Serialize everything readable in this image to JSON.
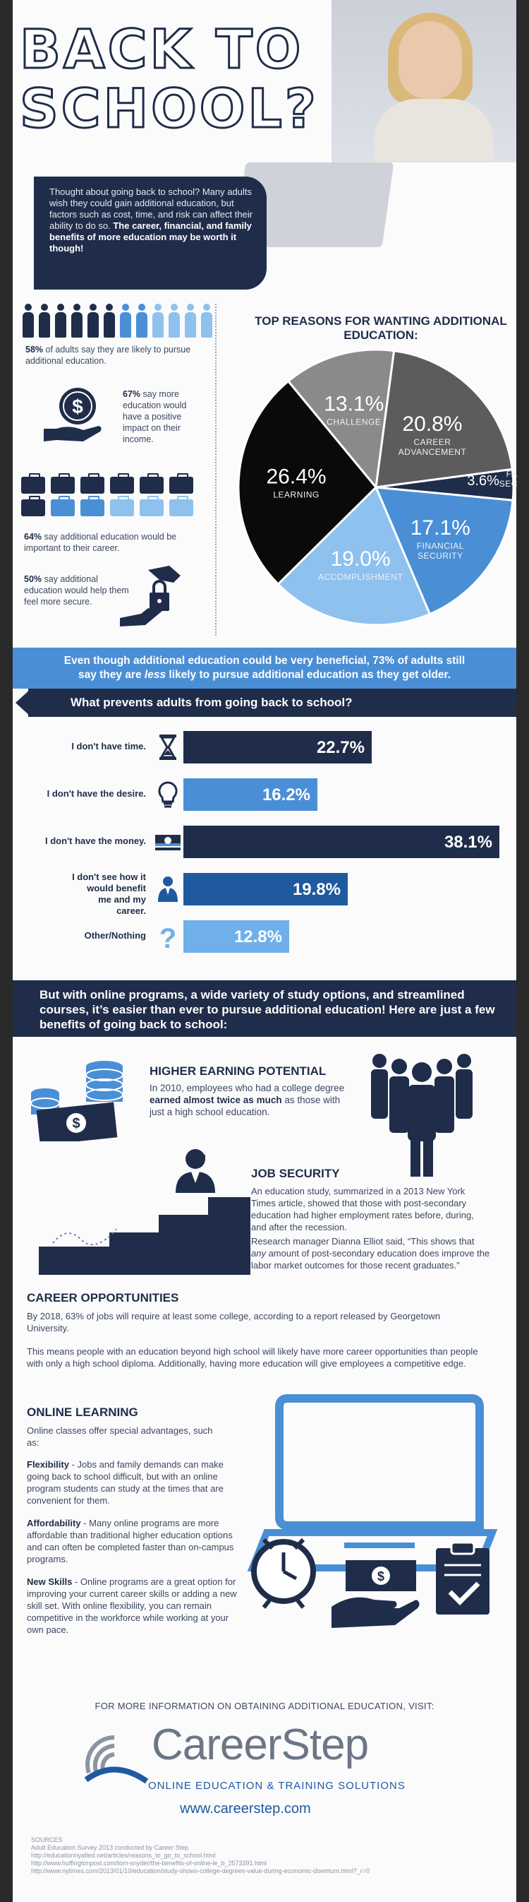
{
  "header": {
    "title_line1": "BACK TO",
    "title_line2": "SCHOOL?",
    "intro": "Thought about going back to school? Many adults wish they could gain additional education, but factors such as cost, time, and risk can affect their ability to do so.",
    "intro_bold": "The career, financial, and family benefits of more education may be worth it though!"
  },
  "stats": {
    "s1_pct": "58%",
    "s1_text": " of adults say they are likely to pursue additional education.",
    "s2_pct": "67%",
    "s2_text": " say more education would have a positive impact on their income.",
    "s3_pct": "64%",
    "s3_text": " say additional education would be important to their career.",
    "s4_pct": "50%",
    "s4_text": " say additional education would help them feel more secure."
  },
  "colors": {
    "navy": "#1f2d4a",
    "blue": "#4a8fd6",
    "light_blue": "#8ec1ee",
    "dark_gray": "#3a3a3a",
    "gray": "#8a8a8a",
    "black": "#0a0a0a"
  },
  "pie": {
    "title": "TOP REASONS FOR WANTING ADDITIONAL EDUCATION:"
  },
  "chart_data": [
    {
      "type": "pie",
      "title": "TOP REASONS FOR WANTING ADDITIONAL EDUCATION:",
      "slices": [
        {
          "label": "CHALLENGE",
          "value": 13.1,
          "display": "13.1%",
          "color": "#8a8a8a"
        },
        {
          "label": "CAREER ADVANCEMENT",
          "value": 20.8,
          "display": "20.8%",
          "color": "#5c5c5c"
        },
        {
          "label": "FAMILY SECURITY",
          "value": 3.6,
          "display": "3.6%",
          "color": "#1f2d4a"
        },
        {
          "label": "FINANCIAL SECURITY",
          "value": 17.1,
          "display": "17.1%",
          "color": "#4a8fd6"
        },
        {
          "label": "ACCOMPLISHMENT",
          "value": 19.0,
          "display": "19.0%",
          "color": "#8ec1ee"
        },
        {
          "label": "LEARNING",
          "value": 26.4,
          "display": "26.4%",
          "color": "#0a0a0a"
        }
      ]
    },
    {
      "type": "bar",
      "title": "What prevents adults from going back to school?",
      "categories": [
        "I don't have time.",
        "I don't have the desire.",
        "I don't have the money.",
        "I don't see how it would benefit me and my career.",
        "Other/Nothing"
      ],
      "values": [
        22.7,
        16.2,
        38.1,
        19.8,
        12.8
      ],
      "display": [
        "22.7%",
        "16.2%",
        "38.1%",
        "19.8%",
        "12.8%"
      ],
      "colors": [
        "#1f2d4a",
        "#4a8fd6",
        "#1f2d4a",
        "#1f5aa0",
        "#6fb0ea"
      ],
      "icons": [
        "hourglass-icon",
        "lightbulb-icon",
        "money-stack-icon",
        "person-icon",
        "question-mark-icon"
      ]
    }
  ],
  "banner1": {
    "line1": "Even though additional education could be very beneficial, 73% of adults still",
    "line2a": "say they are ",
    "line2_italic": "less",
    "line2b": " likely to pursue additional education as they get older."
  },
  "question": "What prevents adults from going back to school?",
  "banner2": "But with online programs, a wide variety of study options, and streamlined courses, it’s easier than ever to pursue additional education! Here are just a few benefits of going back to school:",
  "benefits": {
    "earning": {
      "heading": "HIGHER EARNING POTENTIAL",
      "text_a": "In 2010, employees who had a college degree ",
      "text_bold": "earned almost twice as much",
      "text_b": " as those with just a high school education."
    },
    "security": {
      "heading": "JOB SECURITY",
      "para1": "An education study, summarized in a 2013 New York Times article, showed that those with post-secondary education had higher employment rates before, during, and after the recession.",
      "para2_a": "Research manager Dianna Elliot said, “This shows that ",
      "para2_italic": "any",
      "para2_b": " amount of post-secondary education does improve the labor market outcomes for those recent graduates.”"
    },
    "career": {
      "heading": "CAREER OPPORTUNITIES",
      "para1": "By 2018, 63% of jobs will require at least some college, according to a report released by Georgetown University.",
      "para2": "This means people with an education beyond high school will likely have more career opportunities than people with only a high school diploma.  Additionally, having more education will give employees a competitive edge."
    },
    "online": {
      "heading": "ONLINE LEARNING",
      "intro": "Online classes offer special advantages, such as:",
      "flex_label": "Flexibility",
      "flex_text": " - Jobs and family demands can make going back to school difficult, but with an online program students can study at the times that are convenient for them.",
      "afford_label": "Affordability",
      "afford_text": " - Many online programs are more affordable than traditional higher education options and can often be completed faster than on-campus programs.",
      "skills_label": "New Skills",
      "skills_text": " - Online programs are a great option for improving your current career skills or adding a new skill set. With online flexibility, you can remain competitive in the workforce while working at your own pace."
    }
  },
  "footer": {
    "lead": "FOR MORE INFORMATION ON OBTAINING ADDITIONAL EDUCATION, VISIT:",
    "brand": "CareerStep",
    "tagline": "ONLINE EDUCATION & TRAINING SOLUTIONS",
    "url": "www.careerstep.com",
    "sources_title": "SOURCES",
    "source1": "Adult Education Survey 2013 conducted by Career Step",
    "source2": "http://educationnyafied.net/articles/reasons_to_go_to_school.html",
    "source3": "http://www.huffingtonpost.com/tom-snyder/the-benefits-of-online-le_b_2573391.html",
    "source4": "http://www.nytimes.com/2013/01/10/education/study-shows-college-degrees-value-during-economic-downturn.html?_r=0"
  }
}
